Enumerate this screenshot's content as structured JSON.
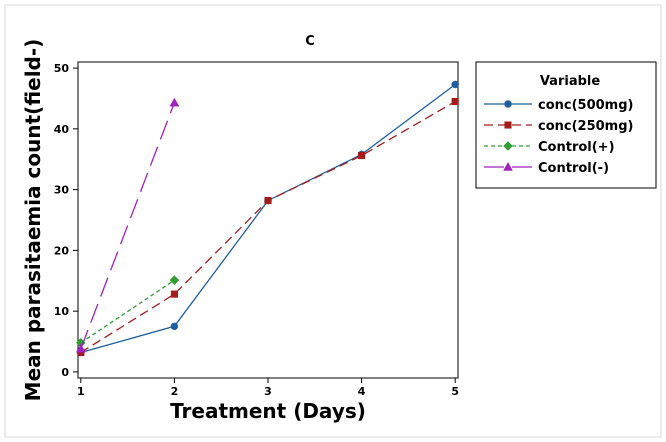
{
  "chart_data": {
    "type": "line",
    "title": "C",
    "xlabel": "Treatment (Days)",
    "ylabel": "Mean parasitaemia count(field-)",
    "x_ticks": [
      1,
      2,
      3,
      4,
      5
    ],
    "y_ticks": [
      0,
      10,
      20,
      30,
      40,
      50
    ],
    "xlim": [
      0.97,
      5.03
    ],
    "ylim": [
      -1,
      51
    ],
    "grid": false,
    "legend": {
      "title": "Variable",
      "placement": "right"
    },
    "series": [
      {
        "name": "conc(500mg)",
        "color": "#1f5f9e",
        "dash": "solid",
        "marker": "circle",
        "x": [
          1,
          2,
          3,
          4,
          5
        ],
        "y": [
          3.2,
          7.5,
          28.2,
          35.8,
          47.3
        ]
      },
      {
        "name": "conc(250mg)",
        "color": "#a31d1d",
        "dash": "medium",
        "marker": "square",
        "x": [
          1,
          2,
          3,
          4,
          5
        ],
        "y": [
          3.2,
          12.8,
          28.2,
          35.6,
          44.5
        ]
      },
      {
        "name": "Control(+)",
        "color": "#2e9e2e",
        "dash": "short",
        "marker": "diamond",
        "x": [
          1,
          2
        ],
        "y": [
          4.8,
          15.1
        ]
      },
      {
        "name": "Control(-)",
        "color": "#a020c0",
        "dash": "long",
        "marker": "triangle",
        "x": [
          1,
          2
        ],
        "y": [
          3.8,
          44.3
        ]
      }
    ]
  }
}
